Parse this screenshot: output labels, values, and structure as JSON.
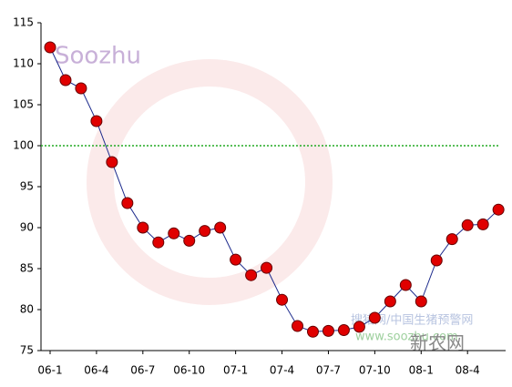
{
  "chart_data": {
    "type": "line",
    "categories": [
      "06-1",
      null,
      null,
      "06-4",
      null,
      null,
      "06-7",
      null,
      null,
      "06-10",
      null,
      null,
      "07-1",
      null,
      null,
      "07-4",
      null,
      null,
      "07-7",
      null,
      null,
      "07-10",
      null,
      null,
      "08-1",
      null,
      null,
      "08-4",
      null,
      null
    ],
    "series": [
      {
        "color": "#1c2a8c",
        "marker_color": "#e00000",
        "values": [
          112,
          108,
          107,
          103,
          98,
          93,
          90,
          88.2,
          89.3,
          88.4,
          89.6,
          90,
          86.1,
          84.2,
          85.1,
          81.2,
          78,
          77.3,
          77.4,
          77.5,
          77.9,
          79,
          81,
          83,
          81,
          86,
          88.6,
          90.3,
          90.4,
          92.2
        ]
      }
    ],
    "ylim": [
      75,
      115
    ],
    "yticks": [
      75,
      80,
      85,
      90,
      95,
      100,
      105,
      110,
      115
    ],
    "reference_line": {
      "value": 100,
      "color": "#22aa22"
    },
    "watermarks": [
      "Soozhu",
      "搜猪网/中国生猪预警网",
      "www.soozhu.com",
      "新农网"
    ]
  }
}
